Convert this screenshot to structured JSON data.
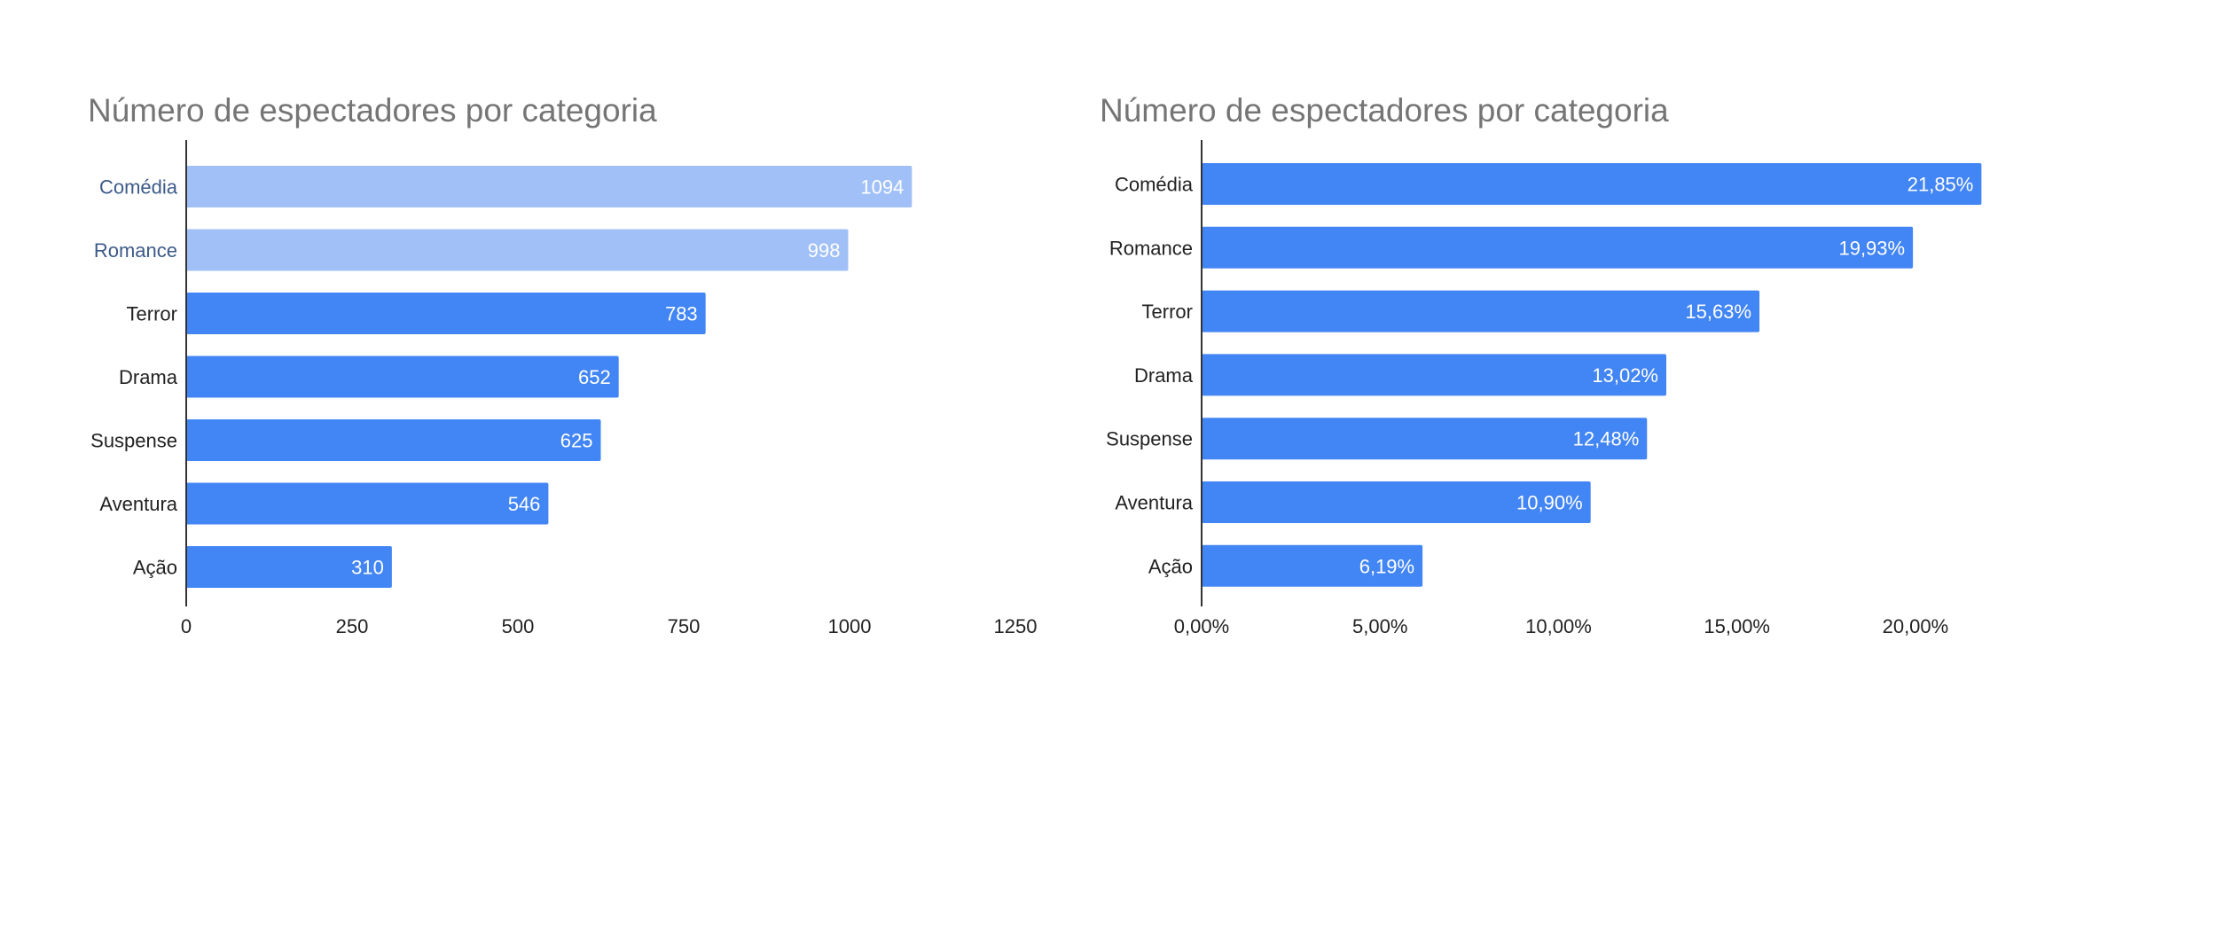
{
  "chart_data": [
    {
      "type": "bar",
      "orientation": "horizontal",
      "title": "Número de espectadores por categoria",
      "categories": [
        "Comédia",
        "Romance",
        "Terror",
        "Drama",
        "Suspense",
        "Aventura",
        "Ação"
      ],
      "values": [
        1094,
        998,
        783,
        652,
        625,
        546,
        310
      ],
      "value_labels": [
        "1094",
        "998",
        "783",
        "652",
        "625",
        "546",
        "310"
      ],
      "highlighted": [
        true,
        true,
        false,
        false,
        false,
        false,
        false
      ],
      "xlim": [
        0,
        1250
      ],
      "x_ticks": [
        0,
        250,
        500,
        750,
        1000,
        1250
      ],
      "x_tick_labels": [
        "0",
        "250",
        "500",
        "750",
        "1000",
        "1250"
      ],
      "grid": false,
      "colors": {
        "bar": "#4285f4",
        "bar_highlight": "#a1c0f7",
        "axis": "#333333"
      }
    },
    {
      "type": "bar",
      "orientation": "horizontal",
      "title": "Número de espectadores por categoria",
      "categories": [
        "Comédia",
        "Romance",
        "Terror",
        "Drama",
        "Suspense",
        "Aventura",
        "Ação"
      ],
      "values": [
        21.85,
        19.93,
        15.63,
        13.02,
        12.48,
        10.9,
        6.19
      ],
      "value_labels": [
        "21,85%",
        "19,93%",
        "15,63%",
        "13,02%",
        "12,48%",
        "10,90%",
        "6,19%"
      ],
      "highlighted": [
        false,
        false,
        false,
        false,
        false,
        false,
        false
      ],
      "xlim": [
        0,
        24.4
      ],
      "x_ticks": [
        0,
        5,
        10,
        15,
        20
      ],
      "x_tick_labels": [
        "0,00%",
        "5,00%",
        "10,00%",
        "15,00%",
        "20,00%"
      ],
      "grid": false,
      "colors": {
        "bar": "#4285f4",
        "bar_highlight": "#a1c0f7",
        "axis": "#333333"
      }
    }
  ]
}
